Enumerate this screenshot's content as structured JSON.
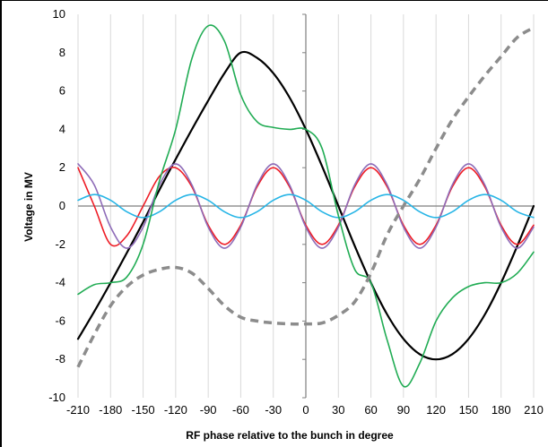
{
  "chart_data": {
    "type": "line",
    "title": "",
    "xlabel": "RF phase relative to the bunch in degree",
    "ylabel": "Voltage in MV",
    "xlim": [
      -210,
      210
    ],
    "ylim": [
      -10,
      10
    ],
    "grid": "vertical",
    "legend": "none",
    "x_ticks": [
      "-210",
      "-180",
      "-150",
      "-120",
      "-90",
      "-60",
      "-30",
      "0",
      "30",
      "60",
      "90",
      "120",
      "150",
      "180",
      "210"
    ],
    "y_ticks": [
      "-10",
      "-8",
      "-6",
      "-4",
      "-2",
      "0",
      "2",
      "4",
      "6",
      "8",
      "10"
    ],
    "x": [
      -210,
      -195,
      -180,
      -165,
      -150,
      -135,
      -120,
      -105,
      -90,
      -75,
      -60,
      -45,
      -30,
      -15,
      0,
      15,
      30,
      45,
      60,
      75,
      90,
      105,
      120,
      135,
      150,
      165,
      180,
      195,
      210
    ],
    "series": [
      {
        "color": "#000000",
        "style": "solid",
        "values": [
          -6.93,
          -5.5,
          -4.0,
          -2.44,
          -0.84,
          0.84,
          2.44,
          4.0,
          5.5,
          6.93,
          8.0,
          7.73,
          6.93,
          5.66,
          4.0,
          2.07,
          0.0,
          -2.07,
          -4.0,
          -5.66,
          -6.93,
          -7.73,
          -8.0,
          -7.73,
          -6.93,
          -5.66,
          -4.0,
          -2.07,
          0.0
        ]
      },
      {
        "color": "#ee1c25",
        "style": "solid",
        "values": [
          2.0,
          0.0,
          -2.0,
          -1.55,
          0.0,
          1.55,
          2.0,
          1.0,
          -1.0,
          -2.0,
          -1.0,
          1.0,
          2.0,
          1.0,
          -1.0,
          -2.0,
          -1.0,
          1.0,
          2.0,
          1.0,
          -1.0,
          -2.0,
          -1.0,
          1.0,
          2.0,
          1.0,
          -1.0,
          -2.0,
          -1.0
        ]
      },
      {
        "color": "#8e6cb8",
        "style": "solid",
        "values": [
          2.2,
          1.1,
          -1.1,
          -2.2,
          -1.1,
          1.1,
          2.2,
          1.1,
          -1.1,
          -2.2,
          -1.1,
          1.1,
          2.2,
          1.1,
          -1.1,
          -2.2,
          -1.1,
          1.1,
          2.2,
          1.1,
          -1.1,
          -2.2,
          -1.1,
          1.1,
          2.2,
          1.1,
          -1.1,
          -2.2,
          -1.1
        ]
      },
      {
        "color": "#27b5e6",
        "style": "solid",
        "values": [
          0.3,
          0.6,
          0.3,
          -0.3,
          -0.6,
          -0.3,
          0.3,
          0.6,
          0.3,
          -0.3,
          -0.6,
          -0.3,
          0.3,
          0.6,
          0.3,
          -0.3,
          -0.6,
          -0.3,
          0.3,
          0.6,
          0.3,
          -0.3,
          -0.6,
          -0.3,
          0.3,
          0.6,
          0.3,
          -0.3,
          -0.6
        ]
      },
      {
        "color": "#21ac54",
        "style": "solid",
        "values": [
          -4.6,
          -4.1,
          -4.0,
          -3.7,
          -2.0,
          1.3,
          4.0,
          7.7,
          9.4,
          8.6,
          5.8,
          4.4,
          4.1,
          4.0,
          4.0,
          3.0,
          -0.5,
          -3.3,
          -4.0,
          -7.0,
          -9.4,
          -8.2,
          -6.0,
          -4.8,
          -4.2,
          -4.0,
          -4.0,
          -3.5,
          -2.4
        ]
      },
      {
        "color": "#8c8c8c",
        "style": "dashed",
        "values": [
          -8.4,
          -6.7,
          -5.2,
          -4.2,
          -3.6,
          -3.3,
          -3.2,
          -3.5,
          -4.3,
          -5.2,
          -5.8,
          -6.0,
          -6.1,
          -6.15,
          -6.15,
          -6.1,
          -5.7,
          -5.0,
          -3.5,
          -1.5,
          0.0,
          1.4,
          3.0,
          4.5,
          5.7,
          6.8,
          7.8,
          8.8,
          9.3
        ]
      }
    ]
  }
}
